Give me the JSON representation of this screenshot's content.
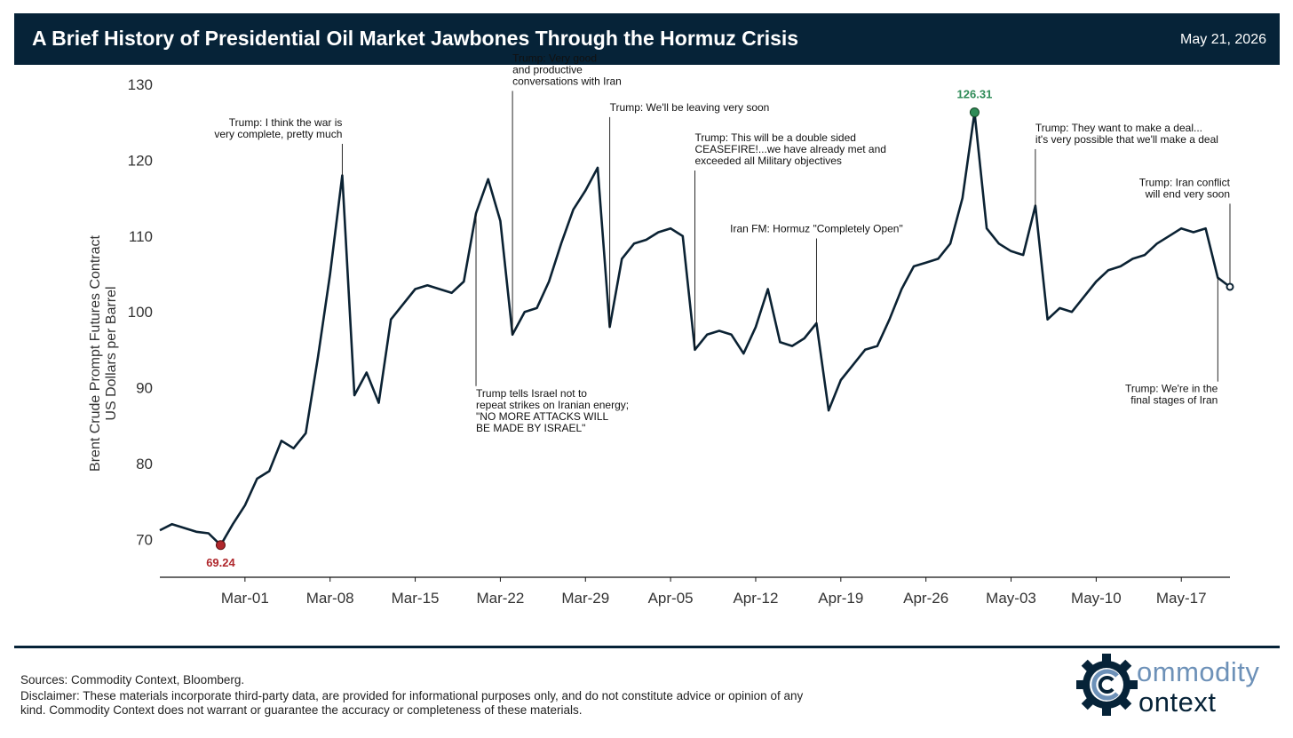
{
  "header": {
    "title": "A Brief History of Presidential Oil Market Jawbones Through the Hormuz Crisis",
    "date": "May 21, 2026"
  },
  "chart_data": {
    "type": "line",
    "ylabel_lines": [
      "Brent Crude Prompt Futures Contract",
      "US Dollars per Barrel"
    ],
    "ylim": [
      65,
      130
    ],
    "yticks": [
      70,
      80,
      90,
      100,
      110,
      120,
      130
    ],
    "xlim": [
      "2026-02-22",
      "2026-05-21"
    ],
    "xticks": [
      "2026-03-01",
      "2026-03-08",
      "2026-03-15",
      "2026-03-22",
      "2026-03-29",
      "2026-04-05",
      "2026-04-12",
      "2026-04-19",
      "2026-04-26",
      "2026-05-03",
      "2026-05-10",
      "2026-05-17"
    ],
    "xtick_labels": [
      "Mar-01",
      "Mar-08",
      "Mar-15",
      "Mar-22",
      "Mar-29",
      "Apr-05",
      "Apr-12",
      "Apr-19",
      "Apr-26",
      "May-03",
      "May-10",
      "May-17"
    ],
    "grid": false,
    "line_color": "#0b2233",
    "series": [
      {
        "x": [
          "2026-02-22",
          "2026-02-23",
          "2026-02-24",
          "2026-02-25",
          "2026-02-26",
          "2026-02-27",
          "2026-02-28",
          "2026-03-01",
          "2026-03-02",
          "2026-03-03",
          "2026-03-04",
          "2026-03-05",
          "2026-03-06",
          "2026-03-07",
          "2026-03-08",
          "2026-03-09",
          "2026-03-10",
          "2026-03-11",
          "2026-03-12",
          "2026-03-13",
          "2026-03-14",
          "2026-03-15",
          "2026-03-16",
          "2026-03-17",
          "2026-03-18",
          "2026-03-19",
          "2026-03-20",
          "2026-03-21",
          "2026-03-22",
          "2026-03-23",
          "2026-03-24",
          "2026-03-25",
          "2026-03-26",
          "2026-03-27",
          "2026-03-28",
          "2026-03-29",
          "2026-03-30",
          "2026-03-31",
          "2026-04-01",
          "2026-04-02",
          "2026-04-03",
          "2026-04-04",
          "2026-04-05",
          "2026-04-06",
          "2026-04-07",
          "2026-04-08",
          "2026-04-09",
          "2026-04-10",
          "2026-04-11",
          "2026-04-12",
          "2026-04-13",
          "2026-04-14",
          "2026-04-15",
          "2026-04-16",
          "2026-04-17",
          "2026-04-18",
          "2026-04-19",
          "2026-04-20",
          "2026-04-21",
          "2026-04-22",
          "2026-04-23",
          "2026-04-24",
          "2026-04-25",
          "2026-04-26",
          "2026-04-27",
          "2026-04-28",
          "2026-04-29",
          "2026-04-30",
          "2026-05-01",
          "2026-05-02",
          "2026-05-03",
          "2026-05-04",
          "2026-05-05",
          "2026-05-06",
          "2026-05-07",
          "2026-05-08",
          "2026-05-09",
          "2026-05-10",
          "2026-05-11",
          "2026-05-12",
          "2026-05-13",
          "2026-05-14",
          "2026-05-15",
          "2026-05-16",
          "2026-05-17",
          "2026-05-18",
          "2026-05-19",
          "2026-05-20",
          "2026-05-21"
        ],
        "y": [
          71.2,
          72.0,
          71.5,
          71.0,
          70.8,
          69.24,
          72.0,
          74.5,
          78.0,
          79.0,
          83.0,
          82.0,
          84.0,
          94.0,
          105.0,
          118.0,
          89.0,
          92.0,
          88.0,
          99.0,
          101.0,
          103.0,
          103.5,
          103.0,
          102.5,
          104.0,
          113.0,
          117.5,
          112.0,
          97.0,
          100.0,
          100.5,
          104.0,
          109.0,
          113.5,
          116.0,
          119.0,
          98.0,
          107.0,
          109.0,
          109.5,
          110.5,
          111.0,
          110.0,
          95.0,
          97.0,
          97.5,
          97.0,
          94.5,
          98.0,
          103.0,
          96.0,
          95.5,
          96.5,
          98.5,
          87.0,
          91.0,
          93.0,
          95.0,
          95.5,
          99.0,
          103.0,
          106.0,
          106.5,
          107.0,
          109.0,
          115.0,
          126.31,
          111.0,
          109.0,
          108.0,
          107.5,
          114.0,
          99.0,
          100.5,
          100.0,
          102.0,
          104.0,
          105.5,
          106.0,
          107.0,
          107.5,
          109.0,
          110.0,
          111.0,
          110.5,
          111.0,
          104.5,
          103.3
        ]
      }
    ],
    "min_point": {
      "x": "2026-02-27",
      "y": 69.24,
      "label": "69.24",
      "color": "#b0282d"
    },
    "max_point": {
      "x": "2026-04-30",
      "y": 126.31,
      "label": "126.31",
      "color": "#2e8b57"
    },
    "last_point": {
      "x": "2026-05-21",
      "y": 103.3
    },
    "annotations": [
      {
        "id": "war-complete",
        "x": "2026-03-09",
        "y": 124.5,
        "align": "end",
        "lines": [
          "Trump: I think the war is",
          "very complete, pretty much"
        ]
      },
      {
        "id": "israel-strikes",
        "x": "2026-03-20",
        "y": 88.8,
        "align": "start",
        "lines": [
          "Trump tells Israel not to",
          "repeat strikes on Iranian energy;",
          "\"NO MORE ATTACKS WILL",
          "BE MADE BY ISRAEL\""
        ]
      },
      {
        "id": "good-conversations",
        "x": "2026-03-23",
        "y": 133.0,
        "align": "start",
        "lines": [
          "Trump: Very good",
          "and productive",
          "conversations with Iran"
        ]
      },
      {
        "id": "leaving-soon",
        "x": "2026-03-31",
        "y": 126.5,
        "align": "start",
        "lines": [
          "Trump: We'll be leaving very soon"
        ]
      },
      {
        "id": "ceasefire",
        "x": "2026-04-07",
        "y": 122.5,
        "align": "start",
        "lines": [
          "Trump: This will be a double sided",
          "CEASEFIRE!...we have already met and",
          "exceeded all Military objectives"
        ]
      },
      {
        "id": "hormuz-open",
        "x": "2026-04-17",
        "y": 110.5,
        "align": "middle",
        "lines": [
          "Iran FM: Hormuz \"Completely Open\""
        ]
      },
      {
        "id": "make-a-deal",
        "x": "2026-05-05",
        "y": 123.8,
        "align": "start",
        "lines": [
          "Trump: They want to make a deal...",
          "it's very possible that we'll make a deal"
        ]
      },
      {
        "id": "end-soon",
        "x": "2026-05-21",
        "y": 116.6,
        "align": "end",
        "lines": [
          "Trump: Iran conflict",
          "will end very soon"
        ]
      },
      {
        "id": "final-stages",
        "x": "2026-05-20",
        "y": 89.4,
        "align": "end",
        "lines": [
          "Trump: We're in the",
          "final stages of Iran"
        ]
      }
    ]
  },
  "footer": {
    "sources": "Sources: Commodity Context, Bloomberg.",
    "disclaimer": "Disclaimer: These materials incorporate third-party data, are provided for informational purposes only, and do not constitute advice or opinion of any kind. Commodity Context does not warrant or guarantee the accuracy or completeness of these materials.",
    "logo_line1": "ommodity",
    "logo_line2": "ontext"
  }
}
